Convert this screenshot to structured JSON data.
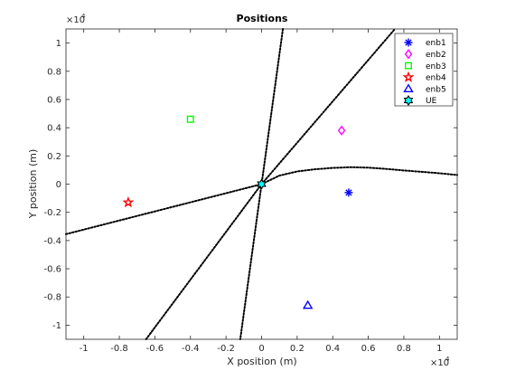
{
  "chart_data": {
    "type": "scatter",
    "title": "Positions",
    "xlabel": "X position (m)",
    "ylabel": "Y position (m)",
    "exponent_base": "×10",
    "exponent_power": "4",
    "xlim": [
      -1.1,
      1.1
    ],
    "ylim": [
      -1.1,
      1.1
    ],
    "xticks": [
      -1,
      -0.8,
      -0.6,
      -0.4,
      -0.2,
      0,
      0.2,
      0.4,
      0.6,
      0.8,
      1
    ],
    "xtick_labels": [
      "-1",
      "-0.8",
      "-0.6",
      "-0.4",
      "-0.2",
      "0",
      "0.2",
      "0.4",
      "0.6",
      "0.8",
      "1"
    ],
    "yticks": [
      -1,
      -0.8,
      -0.6,
      -0.4,
      -0.2,
      0,
      0.2,
      0.4,
      0.6,
      0.8,
      1
    ],
    "ytick_labels": [
      "-1",
      "-0.8",
      "-0.6",
      "-0.4",
      "-0.2",
      "0",
      "0.2",
      "0.4",
      "0.6",
      "0.8",
      "1"
    ],
    "grid": false,
    "legend_position": "top-right",
    "series": [
      {
        "name": "enb1",
        "marker": "asterisk",
        "color": "#0000ff",
        "x": 0.49,
        "y": -0.06
      },
      {
        "name": "enb2",
        "marker": "diamond",
        "color": "#ff00ff",
        "x": 0.45,
        "y": 0.38
      },
      {
        "name": "enb3",
        "marker": "square",
        "color": "#00ff00",
        "x": -0.4,
        "y": 0.46
      },
      {
        "name": "enb4",
        "marker": "pentagram",
        "color": "#ff0000",
        "x": -0.75,
        "y": -0.13
      },
      {
        "name": "enb5",
        "marker": "triangle",
        "color": "#0000ff",
        "x": 0.26,
        "y": -0.86
      },
      {
        "name": "UE",
        "marker": "hexagram",
        "color": "#00ffff",
        "x": 0.0,
        "y": 0.0
      }
    ],
    "lines": [
      {
        "kind": "dotted",
        "points": [
          [
            -1.1,
            -0.355
          ],
          [
            0,
            0
          ]
        ]
      },
      {
        "kind": "dotted",
        "points": [
          [
            0,
            0
          ],
          [
            0.1,
            0.06
          ],
          [
            0.2,
            0.09
          ],
          [
            0.3,
            0.105
          ],
          [
            0.4,
            0.115
          ],
          [
            0.5,
            0.12
          ],
          [
            0.6,
            0.117
          ],
          [
            0.7,
            0.108
          ],
          [
            0.8,
            0.097
          ],
          [
            0.9,
            0.087
          ],
          [
            1.0,
            0.077
          ],
          [
            1.1,
            0.065
          ]
        ]
      },
      {
        "kind": "dotted",
        "points": [
          [
            0,
            0
          ],
          [
            0.75,
            1.1
          ]
        ]
      },
      {
        "kind": "dotted",
        "points": [
          [
            0.12,
            1.1
          ],
          [
            0,
            0
          ]
        ]
      },
      {
        "kind": "dotted",
        "points": [
          [
            0,
            0
          ],
          [
            -0.65,
            -1.1
          ]
        ]
      },
      {
        "kind": "dotted",
        "points": [
          [
            0,
            0
          ],
          [
            -0.12,
            -1.1
          ]
        ]
      }
    ]
  }
}
